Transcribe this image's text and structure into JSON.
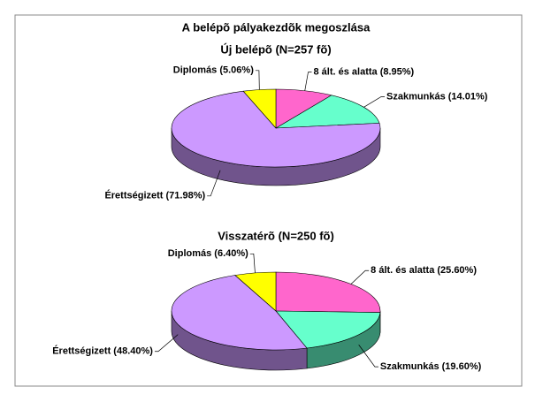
{
  "title": "A belépõ pályakezdõk megoszlása",
  "chart_data": [
    {
      "type": "pie",
      "title": "Új belépõ (N=257 fõ)",
      "categories": [
        "8 ált. és alatta (8.95%)",
        "Szakmunkás (14.01%)",
        "Érettségizett (71.98%)",
        "Diplomás (5.06%)"
      ],
      "values": [
        8.95,
        14.01,
        71.98,
        5.06
      ],
      "colors": [
        "#ff66cc",
        "#66ffcc",
        "#cc99ff",
        "#ffff00"
      ]
    },
    {
      "type": "pie",
      "title": "Visszatérõ (N=250 fõ)",
      "categories": [
        "8 ált. és alatta (25.60%)",
        "Szakmunkás (19.60%)",
        "Érettségizett (48.40%)",
        "Diplomás (6.40%)"
      ],
      "values": [
        25.6,
        19.6,
        48.4,
        6.4
      ],
      "colors": [
        "#ff66cc",
        "#66ffcc",
        "#cc99ff",
        "#ffff00"
      ]
    }
  ]
}
